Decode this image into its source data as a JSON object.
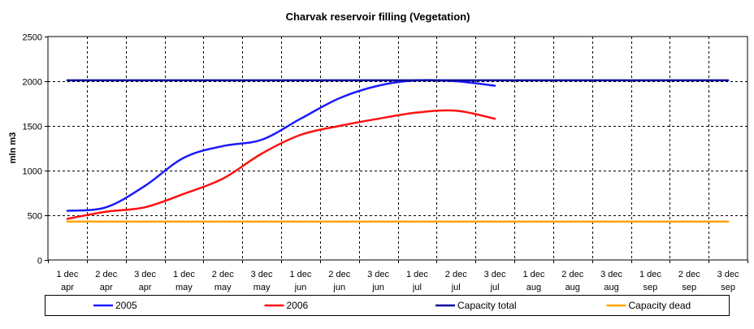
{
  "chart_data": {
    "type": "line",
    "title": "Charvak reservoir filling  (Vegetation)",
    "xlabel": "",
    "ylabel": "mln m3",
    "ylim": [
      0,
      2500
    ],
    "yticks": [
      0,
      500,
      1000,
      1500,
      2000,
      2500
    ],
    "grid": true,
    "legend_position": "bottom",
    "categories": [
      [
        "1 dec",
        "apr"
      ],
      [
        "2 dec",
        "apr"
      ],
      [
        "3 dec",
        "apr"
      ],
      [
        "1 dec",
        "may"
      ],
      [
        "2 dec",
        "may"
      ],
      [
        "3 dec",
        "may"
      ],
      [
        "1 dec",
        "jun"
      ],
      [
        "2 dec",
        "jun"
      ],
      [
        "3 dec",
        "jun"
      ],
      [
        "1 dec",
        "jul"
      ],
      [
        "2 dec",
        "jul"
      ],
      [
        "3 dec",
        "jul"
      ],
      [
        "1 dec",
        "aug"
      ],
      [
        "2 dec",
        "aug"
      ],
      [
        "3 dec",
        "aug"
      ],
      [
        "1 dec",
        "sep"
      ],
      [
        "2 dec",
        "sep"
      ],
      [
        "3 dec",
        "sep"
      ]
    ],
    "series": [
      {
        "name": "2005",
        "color": "#1a1aff",
        "values": [
          550,
          590,
          830,
          1145,
          1275,
          1345,
          1580,
          1810,
          1950,
          2010,
          2000,
          1950,
          null,
          null,
          null,
          null,
          null,
          null
        ]
      },
      {
        "name": "2006",
        "color": "#ff1010",
        "values": [
          460,
          540,
          590,
          740,
          910,
          1190,
          1400,
          1500,
          1580,
          1650,
          1670,
          1580,
          null,
          null,
          null,
          null,
          null,
          null
        ]
      },
      {
        "name": "Capacity total",
        "color": "#000099",
        "values": [
          2010,
          2010,
          2010,
          2010,
          2010,
          2010,
          2010,
          2010,
          2010,
          2010,
          2010,
          2010,
          2010,
          2010,
          2010,
          2010,
          2010,
          2010
        ]
      },
      {
        "name": "Capacity dead",
        "color": "#ffa500",
        "values": [
          430,
          430,
          430,
          430,
          430,
          430,
          430,
          430,
          430,
          430,
          430,
          430,
          430,
          430,
          430,
          430,
          430,
          430
        ]
      }
    ]
  }
}
